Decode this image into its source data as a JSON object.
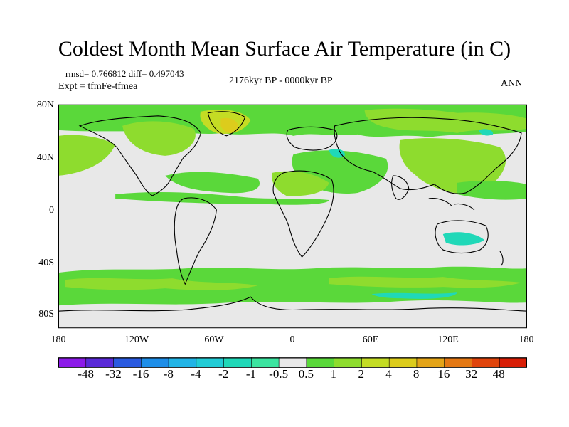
{
  "title": "Coldest Month Mean Surface Air Temperature (in C)",
  "stats": "rmsd= 0.766812 diff= 0.497043",
  "experiment": "Expt = tfmFe-tfmea",
  "period": "2176kyr BP - 0000kyr BP",
  "season": "ANN",
  "lat_labels": [
    "80N",
    "40N",
    "0",
    "40S",
    "80S"
  ],
  "lon_labels": [
    "180",
    "120W",
    "60W",
    "0",
    "60E",
    "120E",
    "180"
  ],
  "colorbar": {
    "labels": [
      "-48",
      "-32",
      "-16",
      "-8",
      "-4",
      "-2",
      "-1",
      "-0.5",
      "0.5",
      "1",
      "2",
      "4",
      "8",
      "16",
      "32",
      "48"
    ],
    "colors": [
      "#8c1ae8",
      "#5a2ad8",
      "#2a5ae0",
      "#1e8ee8",
      "#22b4e6",
      "#22ccd6",
      "#20d8b8",
      "#3ce4a0",
      "#e8e8e8",
      "#5ad83a",
      "#8edc2e",
      "#c4dc24",
      "#dccc1c",
      "#e4a418",
      "#e47814",
      "#e0440c",
      "#d81e06"
    ]
  },
  "map_colors": {
    "neutral": "#e8e8e8",
    "warm_1": "#5ad83a",
    "warm_2": "#8edc2e",
    "warm_3": "#c4dc24",
    "warm_4": "#dccc1c",
    "cool_1": "#20d8b8",
    "coast": "#000000"
  }
}
